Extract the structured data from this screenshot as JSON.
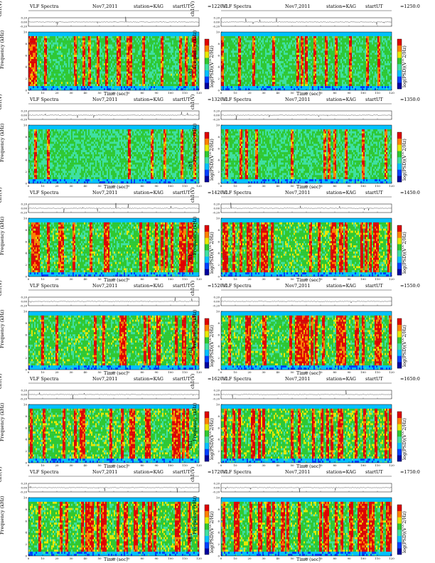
{
  "panels": [
    {
      "title": "VLF Spectra",
      "date": "Nov7,2011",
      "station": "station=KAG",
      "ut_label": "start",
      "ut_pre": "UT",
      "ut": "=1220:0",
      "ch_label": "ch1(V)",
      "y1": "ch1",
      "y2": "Frequency (kHz)",
      "xlabel": "Time (sec)",
      "cb_label": "log(PSD)(V^2/Hz)",
      "density": 0.35
    },
    {
      "title": "VLF Spectra",
      "date": "Nov7,2011",
      "station": "station=KAG",
      "ut_label": "start",
      "ut_pre": "UT",
      "ut": "=1250:0",
      "ch_label": "ch1(V)",
      "y1": "ch1",
      "y2": "Frequency (kHz)",
      "xlabel": "Time (sec)",
      "cb_label": "log(PSD)(V^2/Hz)",
      "density": 0.33
    },
    {
      "title": "VLF Spectra",
      "date": "Nov7,2011",
      "station": "station=KAG",
      "ut_label": "start",
      "ut_pre": "UT",
      "ut": "=1320:0",
      "ch_label": "ch1(V)",
      "y1": "ch1",
      "y2": "Frequency (kHz)",
      "xlabel": "Time (sec)",
      "cb_label": "log(PSD)(V^2/Hz)",
      "density": 0.22
    },
    {
      "title": "VLF Spectra",
      "date": "Nov7,2011",
      "station": "station=KAG",
      "ut_label": "start",
      "ut_pre": "UT",
      "ut": "=1350:0",
      "ch_label": "ch1(V)",
      "y1": "ch1",
      "y2": "Frequency (kHz)",
      "xlabel": "Time (sec)",
      "cb_label": "log(PSD)(V^2/Hz)",
      "density": 0.25
    },
    {
      "title": "VLF Spectra",
      "date": "Nov7,2011",
      "station": "station=KAG",
      "ut_label": "start",
      "ut_pre": "UT",
      "ut": "=1420:0",
      "ch_label": "ch1(V)",
      "y1": "ch1",
      "y2": "Frequency (kHz)",
      "xlabel": "Time (sec)",
      "cb_label": "log(PSD)(V^2/Hz)",
      "density": 0.45
    },
    {
      "title": "VLF Spectra",
      "date": "Nov7,2011",
      "station": "station=KAG",
      "ut_label": "start",
      "ut_pre": "UT",
      "ut": "=1450:0",
      "ch_label": "ch1(V)",
      "y1": "ch1",
      "y2": "Frequency (kHz)",
      "xlabel": "Time (sec)",
      "cb_label": "log(PSD)(V^2/Hz)",
      "density": 0.55
    },
    {
      "title": "VLF Spectra",
      "date": "Nov7,2011",
      "station": "station=KAG",
      "ut_label": "start",
      "ut_pre": "UT",
      "ut": "=1520:0",
      "ch_label": "ch1(V)",
      "y1": "ch1",
      "y2": "Frequency (kHz)",
      "xlabel": "Time (sec)",
      "cb_label": "log(PSD)(V^2/Hz)",
      "density": 0.5
    },
    {
      "title": "VLF Spectra",
      "date": "Nov7,2011",
      "station": "station=KAG",
      "ut_label": "start",
      "ut_pre": "UT",
      "ut": "=1550:0",
      "ch_label": "ch1(V)",
      "y1": "ch1",
      "y2": "Frequency (kHz)",
      "xlabel": "Time (sec)",
      "cb_label": "log(PSD)(V^2/Hz)",
      "density": 0.5
    },
    {
      "title": "VLF Spectra",
      "date": "Nov7,2011",
      "station": "station=KAG",
      "ut_label": "start",
      "ut_pre": "UT",
      "ut": "=1620:0",
      "ch_label": "ch1(V)",
      "y1": "ch1",
      "y2": "Frequency (kHz)",
      "xlabel": "Time (sec)",
      "cb_label": "log(PSD)(V^2/Hz)",
      "density": 0.55
    },
    {
      "title": "VLF Spectra",
      "date": "Nov7,2011",
      "station": "station=KAG",
      "ut_label": "start",
      "ut_pre": "UT",
      "ut": "=1650:0",
      "ch_label": "ch1(V)",
      "y1": "ch1",
      "y2": "Frequency (kHz)",
      "xlabel": "Time (sec)",
      "cb_label": "log(PSD)(V^2/Hz)",
      "density": 0.6
    },
    {
      "title": "VLF Spectra",
      "date": "Nov7,2011",
      "station": "station=KAG",
      "ut_label": "start",
      "ut_pre": "UT",
      "ut": "=1720:0",
      "ch_label": "ch1(V)",
      "y1": "ch1",
      "y2": "Frequency (kHz)",
      "xlabel": "Time (sec)",
      "cb_label": "log(PSD)(V^2/Hz)",
      "density": 0.6
    },
    {
      "title": "VLF Spectra",
      "date": "Nov7,2011",
      "station": "station=KAG",
      "ut_label": "start",
      "ut_pre": "UT",
      "ut": "=1750:0",
      "ch_label": "ch1(V)",
      "y1": "ch1",
      "y2": "Frequency (kHz)",
      "xlabel": "Time (sec)",
      "cb_label": "log(PSD)(V^2/Hz)",
      "density": 0.55
    }
  ],
  "chart_data": {
    "type": "heatmap",
    "xlim": [
      0,
      120
    ],
    "x_ticks": [
      "0",
      "10",
      "20",
      "30",
      "40",
      "50",
      "60",
      "70",
      "80",
      "90",
      "100",
      "110",
      "120"
    ],
    "ylim_frequency_khz": [
      0,
      10
    ],
    "y_ticks_frequency": [
      "0",
      "2",
      "4",
      "6",
      "8",
      "10"
    ],
    "ylim_ch1_v": [
      -0.2,
      0.2
    ],
    "y_ticks_ch1": [
      "0.20",
      "0.00",
      "-0.20"
    ],
    "colormap": [
      "#0000a0",
      "#0040ff",
      "#00c0ff",
      "#40e0a0",
      "#30c830",
      "#e8e800",
      "#ff8000",
      "#e00000",
      "#ffffff"
    ]
  }
}
